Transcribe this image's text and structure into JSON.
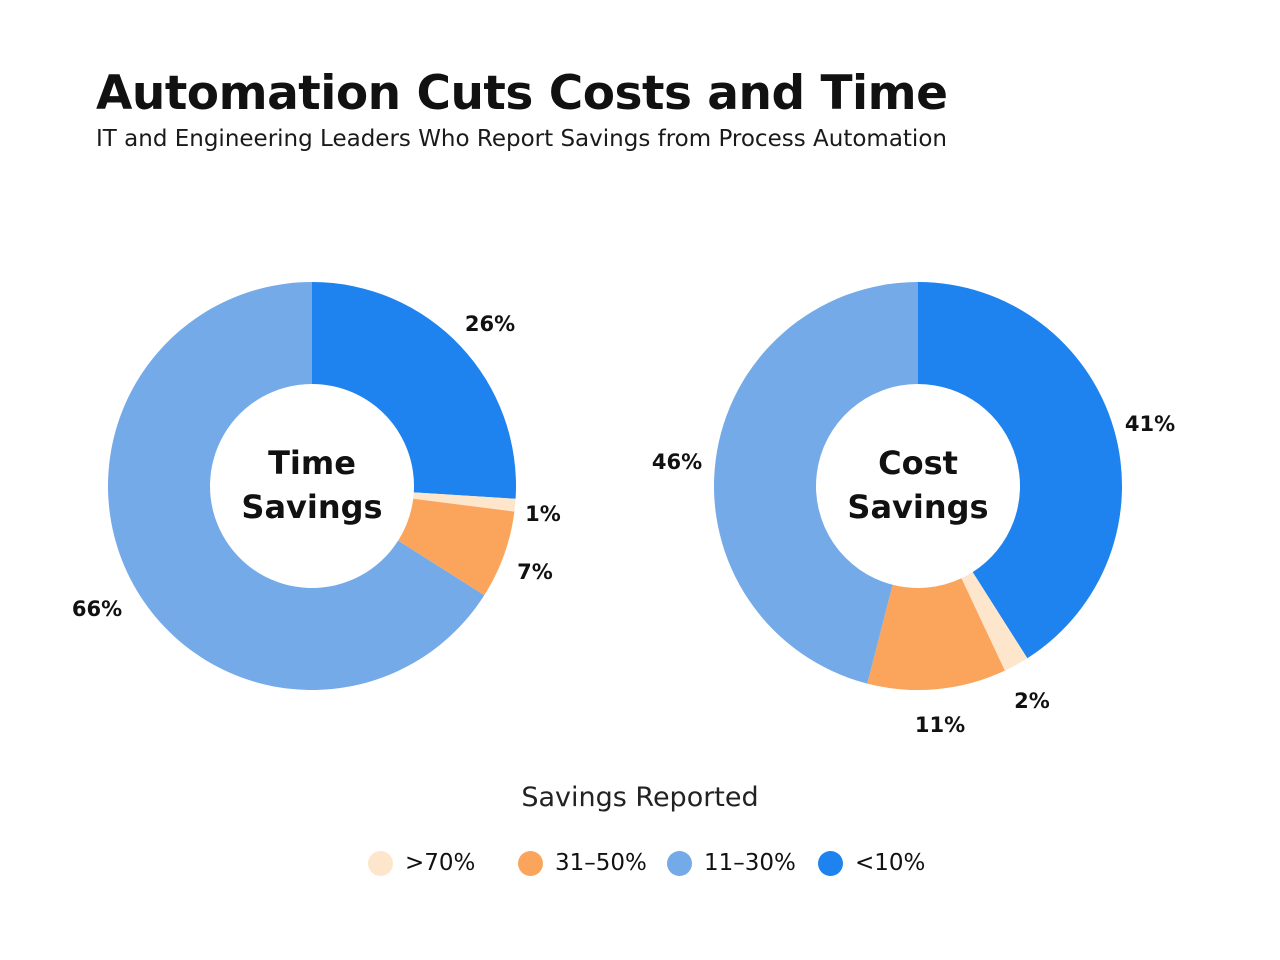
{
  "header": {
    "title": "Automation Cuts Costs and Time",
    "subtitle": "IT and Engineering Leaders Who Report Savings from Process Automation"
  },
  "legend": {
    "title": "Savings Reported",
    "items": [
      {
        "label": ">70%",
        "color": "#fde6cb"
      },
      {
        "label": "31–50%",
        "color": "#fba55c"
      },
      {
        "label": "11–30%",
        "color": "#74aae8"
      },
      {
        "label": "<10%",
        "color": "#1e83ee"
      }
    ]
  },
  "chart_data": [
    {
      "type": "pie",
      "variant": "donut",
      "title": "Time Savings",
      "center_label_lines": [
        "Time",
        "Savings"
      ],
      "start": "12 o'clock, clockwise",
      "slices": [
        {
          "category": "<10%",
          "value": 26,
          "label": "26%",
          "color": "#1e83ee"
        },
        {
          "category": ">70%",
          "value": 1,
          "label": "1%",
          "color": "#fde6cb"
        },
        {
          "category": "31–50%",
          "value": 7,
          "label": "7%",
          "color": "#fba55c"
        },
        {
          "category": "11–30%",
          "value": 66,
          "label": "66%",
          "color": "#74aae8"
        }
      ]
    },
    {
      "type": "pie",
      "variant": "donut",
      "title": "Cost Savings",
      "center_label_lines": [
        "Cost",
        "Savings"
      ],
      "start": "12 o'clock, clockwise",
      "slices": [
        {
          "category": "<10%",
          "value": 41,
          "label": "41%",
          "color": "#1e83ee"
        },
        {
          "category": ">70%",
          "value": 2,
          "label": "2%",
          "color": "#fde6cb"
        },
        {
          "category": "31–50%",
          "value": 11,
          "label": "11%",
          "color": "#fba55c"
        },
        {
          "category": "11–30%",
          "value": 46,
          "label": "46%",
          "color": "#74aae8"
        }
      ]
    }
  ]
}
